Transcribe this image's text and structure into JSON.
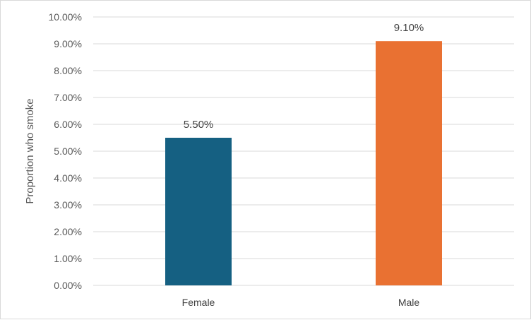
{
  "chart_data": {
    "type": "bar",
    "title": "",
    "xlabel": "",
    "ylabel": "Proportion who smoke",
    "categories": [
      "Female",
      "Male"
    ],
    "values": [
      5.5,
      9.1
    ],
    "data_labels": [
      "5.50%",
      "9.10%"
    ],
    "ylim": [
      0,
      10
    ],
    "y_ticks": [
      0,
      1,
      2,
      3,
      4,
      5,
      6,
      7,
      8,
      9,
      10
    ],
    "y_tick_labels": [
      "0.00%",
      "1.00%",
      "2.00%",
      "3.00%",
      "4.00%",
      "5.00%",
      "6.00%",
      "7.00%",
      "8.00%",
      "9.00%",
      "10.00%"
    ],
    "bar_colors": [
      "#156082",
      "#e97132"
    ],
    "grid": true,
    "legend": "none"
  }
}
